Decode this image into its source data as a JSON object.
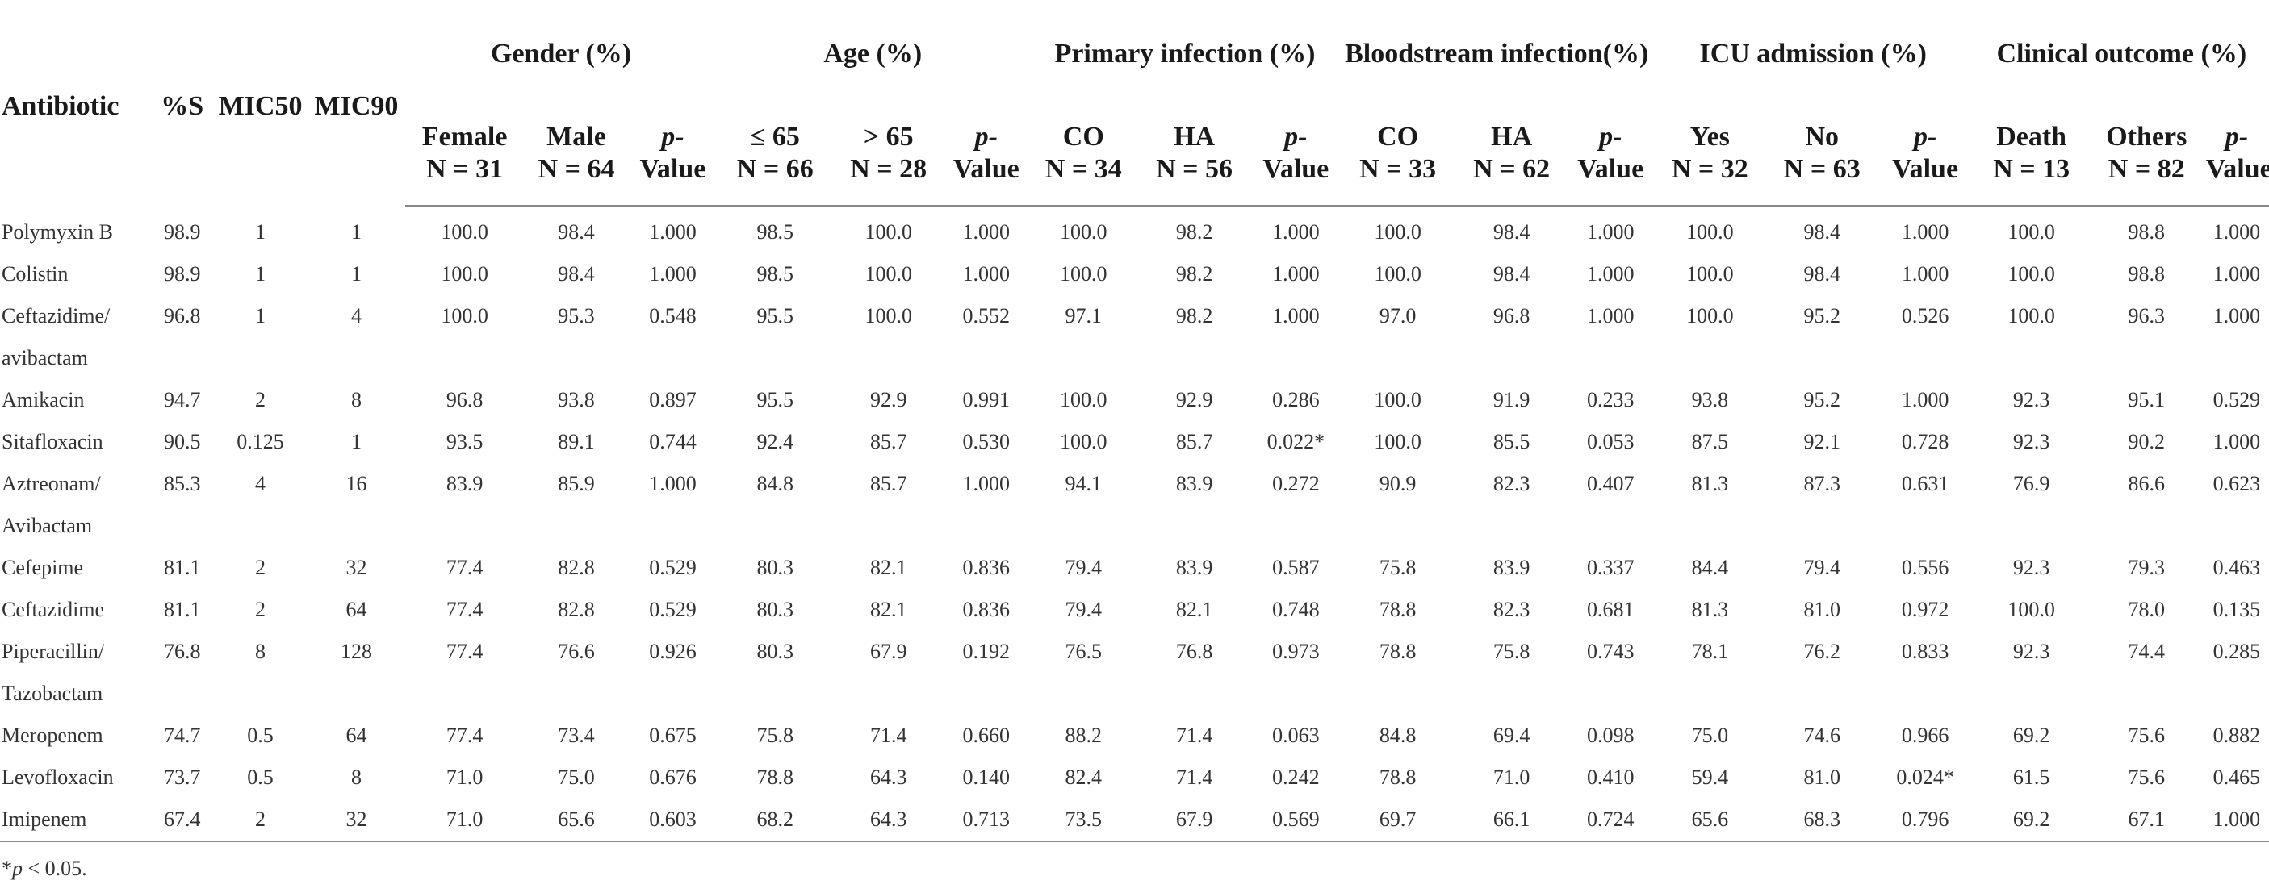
{
  "table": {
    "columns": {
      "antibiotic": "Antibiotic",
      "pct_s": "%S",
      "mic50": "MIC50",
      "mic90": "MIC90"
    },
    "groups": [
      {
        "label": "Gender (%)",
        "sub": [
          [
            "Female",
            "N = 31"
          ],
          [
            "Male",
            "N = 64"
          ],
          [
            "p-",
            "Value"
          ]
        ]
      },
      {
        "label": "Age (%)",
        "sub": [
          [
            "≤ 65",
            "N = 66"
          ],
          [
            "> 65",
            "N = 28"
          ],
          [
            "p-",
            "Value"
          ]
        ]
      },
      {
        "label": "Primary infection (%)",
        "sub": [
          [
            "CO",
            "N = 34"
          ],
          [
            "HA",
            "N = 56"
          ],
          [
            "p-",
            "Value"
          ]
        ]
      },
      {
        "label": "Bloodstream infection(%)",
        "sub": [
          [
            "CO",
            "N = 33"
          ],
          [
            "HA",
            "N = 62"
          ],
          [
            "p-",
            "Value"
          ]
        ]
      },
      {
        "label": "ICU admission (%)",
        "sub": [
          [
            "Yes",
            "N = 32"
          ],
          [
            "No",
            "N = 63"
          ],
          [
            "p-",
            "Value"
          ]
        ]
      },
      {
        "label": "Clinical outcome (%)",
        "sub": [
          [
            "Death",
            "N = 13"
          ],
          [
            "Others",
            "N = 82"
          ],
          [
            "p-",
            "Value"
          ]
        ]
      }
    ],
    "rows": [
      {
        "name": [
          "Polymyxin B"
        ],
        "v": [
          "98.9",
          "1",
          "1",
          "100.0",
          "98.4",
          "1.000",
          "98.5",
          "100.0",
          "1.000",
          "100.0",
          "98.2",
          "1.000",
          "100.0",
          "98.4",
          "1.000",
          "100.0",
          "98.4",
          "1.000",
          "100.0",
          "98.8",
          "1.000"
        ]
      },
      {
        "name": [
          "Colistin"
        ],
        "v": [
          "98.9",
          "1",
          "1",
          "100.0",
          "98.4",
          "1.000",
          "98.5",
          "100.0",
          "1.000",
          "100.0",
          "98.2",
          "1.000",
          "100.0",
          "98.4",
          "1.000",
          "100.0",
          "98.4",
          "1.000",
          "100.0",
          "98.8",
          "1.000"
        ]
      },
      {
        "name": [
          "Ceftazidime/",
          "avibactam"
        ],
        "v": [
          "96.8",
          "1",
          "4",
          "100.0",
          "95.3",
          "0.548",
          "95.5",
          "100.0",
          "0.552",
          "97.1",
          "98.2",
          "1.000",
          "97.0",
          "96.8",
          "1.000",
          "100.0",
          "95.2",
          "0.526",
          "100.0",
          "96.3",
          "1.000"
        ]
      },
      {
        "name": [
          "Amikacin"
        ],
        "v": [
          "94.7",
          "2",
          "8",
          "96.8",
          "93.8",
          "0.897",
          "95.5",
          "92.9",
          "0.991",
          "100.0",
          "92.9",
          "0.286",
          "100.0",
          "91.9",
          "0.233",
          "93.8",
          "95.2",
          "1.000",
          "92.3",
          "95.1",
          "0.529"
        ]
      },
      {
        "name": [
          "Sitafloxacin"
        ],
        "v": [
          "90.5",
          "0.125",
          "1",
          "93.5",
          "89.1",
          "0.744",
          "92.4",
          "85.7",
          "0.530",
          "100.0",
          "85.7",
          "0.022*",
          "100.0",
          "85.5",
          "0.053",
          "87.5",
          "92.1",
          "0.728",
          "92.3",
          "90.2",
          "1.000"
        ]
      },
      {
        "name": [
          "Aztreonam/",
          "Avibactam"
        ],
        "v": [
          "85.3",
          "4",
          "16",
          "83.9",
          "85.9",
          "1.000",
          "84.8",
          "85.7",
          "1.000",
          "94.1",
          "83.9",
          "0.272",
          "90.9",
          "82.3",
          "0.407",
          "81.3",
          "87.3",
          "0.631",
          "76.9",
          "86.6",
          "0.623"
        ]
      },
      {
        "name": [
          "Cefepime"
        ],
        "v": [
          "81.1",
          "2",
          "32",
          "77.4",
          "82.8",
          "0.529",
          "80.3",
          "82.1",
          "0.836",
          "79.4",
          "83.9",
          "0.587",
          "75.8",
          "83.9",
          "0.337",
          "84.4",
          "79.4",
          "0.556",
          "92.3",
          "79.3",
          "0.463"
        ]
      },
      {
        "name": [
          "Ceftazidime"
        ],
        "v": [
          "81.1",
          "2",
          "64",
          "77.4",
          "82.8",
          "0.529",
          "80.3",
          "82.1",
          "0.836",
          "79.4",
          "82.1",
          "0.748",
          "78.8",
          "82.3",
          "0.681",
          "81.3",
          "81.0",
          "0.972",
          "100.0",
          "78.0",
          "0.135"
        ]
      },
      {
        "name": [
          "Piperacillin/",
          "Tazobactam"
        ],
        "v": [
          "76.8",
          "8",
          "128",
          "77.4",
          "76.6",
          "0.926",
          "80.3",
          "67.9",
          "0.192",
          "76.5",
          "76.8",
          "0.973",
          "78.8",
          "75.8",
          "0.743",
          "78.1",
          "76.2",
          "0.833",
          "92.3",
          "74.4",
          "0.285"
        ]
      },
      {
        "name": [
          "Meropenem"
        ],
        "v": [
          "74.7",
          "0.5",
          "64",
          "77.4",
          "73.4",
          "0.675",
          "75.8",
          "71.4",
          "0.660",
          "88.2",
          "71.4",
          "0.063",
          "84.8",
          "69.4",
          "0.098",
          "75.0",
          "74.6",
          "0.966",
          "69.2",
          "75.6",
          "0.882"
        ]
      },
      {
        "name": [
          "Levofloxacin"
        ],
        "v": [
          "73.7",
          "0.5",
          "8",
          "71.0",
          "75.0",
          "0.676",
          "78.8",
          "64.3",
          "0.140",
          "82.4",
          "71.4",
          "0.242",
          "78.8",
          "71.0",
          "0.410",
          "59.4",
          "81.0",
          "0.024*",
          "61.5",
          "75.6",
          "0.465"
        ]
      },
      {
        "name": [
          "Imipenem"
        ],
        "v": [
          "67.4",
          "2",
          "32",
          "71.0",
          "65.6",
          "0.603",
          "68.2",
          "64.3",
          "0.713",
          "73.5",
          "67.9",
          "0.569",
          "69.7",
          "66.1",
          "0.724",
          "65.6",
          "68.3",
          "0.796",
          "69.2",
          "67.1",
          "1.000"
        ]
      }
    ]
  },
  "footnote": {
    "mark": "*",
    "italic": "p",
    "text": "< 0.05."
  }
}
